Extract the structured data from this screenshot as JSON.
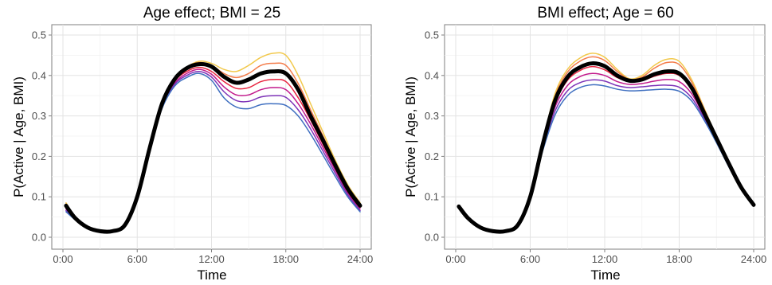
{
  "chart_data": [
    {
      "type": "line",
      "title": "Age effect; BMI = 25",
      "xlabel": "Time",
      "ylabel": "P(Active | Age, BMI)",
      "xlim": [
        0,
        24
      ],
      "ylim": [
        0,
        0.5
      ],
      "x_ticks": [
        0,
        6,
        12,
        18,
        24
      ],
      "x_tick_labels": [
        "0:00",
        "6:00",
        "12:00",
        "18:00",
        "24:00"
      ],
      "y_ticks": [
        0,
        0.1,
        0.2,
        0.3,
        0.4,
        0.5
      ],
      "y_tick_labels": [
        "0.0",
        "0.1",
        "0.2",
        "0.3",
        "0.4",
        "0.5"
      ],
      "grid": true,
      "legend": "none",
      "x": [
        0.25,
        1,
        2,
        3,
        4,
        5,
        6,
        7,
        8,
        9,
        10,
        11,
        12,
        13,
        14,
        15,
        16,
        17,
        18,
        19,
        20,
        21,
        22,
        23,
        24
      ],
      "series": [
        {
          "color": "#f2c94c",
          "width": 1.5,
          "values": [
            0.085,
            0.05,
            0.025,
            0.015,
            0.015,
            0.03,
            0.1,
            0.22,
            0.33,
            0.39,
            0.42,
            0.435,
            0.43,
            0.415,
            0.41,
            0.425,
            0.445,
            0.455,
            0.45,
            0.4,
            0.33,
            0.26,
            0.19,
            0.13,
            0.085
          ]
        },
        {
          "color": "#f47c4a",
          "width": 1.5,
          "values": [
            0.082,
            0.049,
            0.025,
            0.015,
            0.015,
            0.03,
            0.1,
            0.22,
            0.33,
            0.39,
            0.42,
            0.432,
            0.425,
            0.405,
            0.395,
            0.405,
            0.425,
            0.43,
            0.425,
            0.38,
            0.315,
            0.25,
            0.185,
            0.125,
            0.082
          ]
        },
        {
          "color": "#e8243f",
          "width": 1.5,
          "values": [
            0.074,
            0.046,
            0.024,
            0.015,
            0.015,
            0.03,
            0.1,
            0.22,
            0.325,
            0.385,
            0.41,
            0.42,
            0.41,
            0.385,
            0.368,
            0.37,
            0.385,
            0.39,
            0.385,
            0.345,
            0.29,
            0.23,
            0.17,
            0.115,
            0.074
          ]
        },
        {
          "color": "#c2188b",
          "width": 1.5,
          "values": [
            0.07,
            0.045,
            0.024,
            0.015,
            0.015,
            0.03,
            0.1,
            0.22,
            0.322,
            0.38,
            0.405,
            0.415,
            0.403,
            0.372,
            0.352,
            0.352,
            0.365,
            0.37,
            0.365,
            0.33,
            0.28,
            0.222,
            0.165,
            0.11,
            0.07
          ]
        },
        {
          "color": "#7e33b8",
          "width": 1.5,
          "values": [
            0.066,
            0.044,
            0.023,
            0.015,
            0.015,
            0.03,
            0.1,
            0.22,
            0.32,
            0.377,
            0.4,
            0.41,
            0.396,
            0.36,
            0.338,
            0.336,
            0.347,
            0.35,
            0.346,
            0.315,
            0.268,
            0.213,
            0.158,
            0.105,
            0.066
          ]
        },
        {
          "color": "#3f6fc0",
          "width": 1.5,
          "values": [
            0.063,
            0.043,
            0.023,
            0.015,
            0.015,
            0.03,
            0.1,
            0.22,
            0.318,
            0.373,
            0.395,
            0.405,
            0.388,
            0.345,
            0.322,
            0.318,
            0.328,
            0.33,
            0.326,
            0.3,
            0.255,
            0.203,
            0.15,
            0.1,
            0.063
          ]
        },
        {
          "color": "#000000",
          "width": 5,
          "values": [
            0.078,
            0.047,
            0.024,
            0.015,
            0.015,
            0.03,
            0.1,
            0.22,
            0.33,
            0.39,
            0.418,
            0.428,
            0.422,
            0.397,
            0.382,
            0.39,
            0.405,
            0.41,
            0.405,
            0.365,
            0.3,
            0.24,
            0.178,
            0.12,
            0.078
          ]
        }
      ]
    },
    {
      "type": "line",
      "title": "BMI effect; Age = 60",
      "xlabel": "Time",
      "ylabel": "P(Active | Age, BMI)",
      "xlim": [
        0,
        24
      ],
      "ylim": [
        0,
        0.5
      ],
      "x_ticks": [
        0,
        6,
        12,
        18,
        24
      ],
      "x_tick_labels": [
        "0:00",
        "6:00",
        "12:00",
        "18:00",
        "24:00"
      ],
      "y_ticks": [
        0,
        0.1,
        0.2,
        0.3,
        0.4,
        0.5
      ],
      "y_tick_labels": [
        "0.0",
        "0.1",
        "0.2",
        "0.3",
        "0.4",
        "0.5"
      ],
      "grid": true,
      "legend": "none",
      "x": [
        0.25,
        1,
        2,
        3,
        4,
        5,
        6,
        7,
        8,
        9,
        10,
        11,
        12,
        13,
        14,
        15,
        16,
        17,
        18,
        19,
        20,
        21,
        22,
        23,
        24
      ],
      "series": [
        {
          "color": "#f2c94c",
          "width": 1.5,
          "values": [
            0.076,
            0.047,
            0.024,
            0.015,
            0.015,
            0.03,
            0.1,
            0.235,
            0.355,
            0.415,
            0.443,
            0.455,
            0.445,
            0.415,
            0.392,
            0.4,
            0.425,
            0.44,
            0.435,
            0.39,
            0.32,
            0.25,
            0.185,
            0.125,
            0.08
          ]
        },
        {
          "color": "#f47c4a",
          "width": 1.5,
          "values": [
            0.076,
            0.047,
            0.024,
            0.015,
            0.015,
            0.03,
            0.1,
            0.232,
            0.348,
            0.408,
            0.435,
            0.446,
            0.437,
            0.41,
            0.39,
            0.396,
            0.418,
            0.432,
            0.427,
            0.384,
            0.317,
            0.248,
            0.184,
            0.124,
            0.08
          ]
        },
        {
          "color": "#e8243f",
          "width": 1.5,
          "values": [
            0.076,
            0.047,
            0.024,
            0.015,
            0.015,
            0.03,
            0.1,
            0.225,
            0.332,
            0.388,
            0.412,
            0.422,
            0.414,
            0.395,
            0.385,
            0.387,
            0.398,
            0.405,
            0.4,
            0.365,
            0.305,
            0.243,
            0.18,
            0.122,
            0.08
          ]
        },
        {
          "color": "#c2188b",
          "width": 1.5,
          "values": [
            0.076,
            0.047,
            0.024,
            0.015,
            0.015,
            0.03,
            0.1,
            0.222,
            0.322,
            0.375,
            0.397,
            0.405,
            0.4,
            0.385,
            0.378,
            0.38,
            0.386,
            0.39,
            0.385,
            0.355,
            0.3,
            0.24,
            0.178,
            0.121,
            0.08
          ]
        },
        {
          "color": "#7e33b8",
          "width": 1.5,
          "values": [
            0.076,
            0.047,
            0.024,
            0.015,
            0.015,
            0.03,
            0.1,
            0.218,
            0.312,
            0.362,
            0.382,
            0.389,
            0.386,
            0.375,
            0.37,
            0.372,
            0.375,
            0.376,
            0.371,
            0.345,
            0.295,
            0.237,
            0.176,
            0.12,
            0.08
          ]
        },
        {
          "color": "#3f6fc0",
          "width": 1.5,
          "values": [
            0.076,
            0.047,
            0.024,
            0.015,
            0.015,
            0.03,
            0.1,
            0.213,
            0.302,
            0.35,
            0.37,
            0.377,
            0.374,
            0.366,
            0.362,
            0.363,
            0.365,
            0.366,
            0.361,
            0.337,
            0.29,
            0.234,
            0.174,
            0.119,
            0.08
          ]
        },
        {
          "color": "#000000",
          "width": 5,
          "values": [
            0.076,
            0.047,
            0.024,
            0.015,
            0.015,
            0.03,
            0.1,
            0.228,
            0.338,
            0.396,
            0.42,
            0.43,
            0.423,
            0.4,
            0.387,
            0.39,
            0.403,
            0.41,
            0.405,
            0.37,
            0.308,
            0.245,
            0.182,
            0.123,
            0.08
          ]
        }
      ]
    }
  ]
}
